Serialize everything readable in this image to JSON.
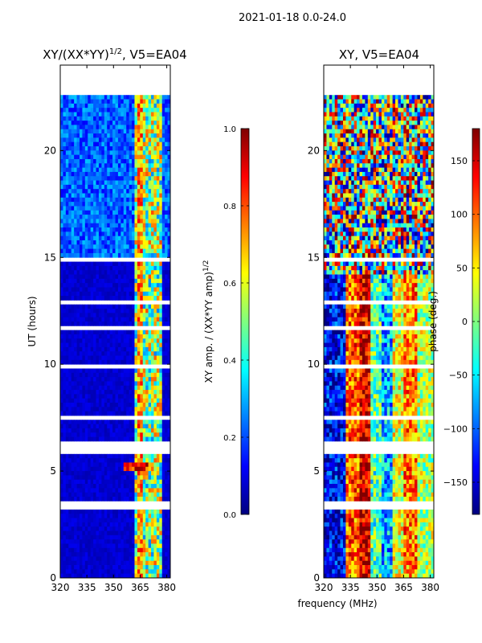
{
  "suptitle": "2021-01-18 0.0-24.0",
  "xlabel": "frequency (MHz)",
  "colors": {
    "jet": [
      "#00007f",
      "#0000ff",
      "#007fff",
      "#00ffff",
      "#7fff7f",
      "#ffff00",
      "#ff7f00",
      "#ff0000",
      "#7f0000"
    ],
    "flag": "#ffffff"
  },
  "chart_data": [
    {
      "type": "heatmap",
      "title_main": "XY/(XX*YY)",
      "title_sup": "1/2",
      "title_suffix": ", V5=EA04",
      "xlabel": "",
      "ylabel": "UT (hours)",
      "xlim": [
        320,
        382
      ],
      "ylim": [
        0,
        24
      ],
      "xticks": [
        "320",
        "335",
        "350",
        "365",
        "380"
      ],
      "xtick_values": [
        320,
        335,
        350,
        365,
        380
      ],
      "yticks": [
        "0",
        "5",
        "10",
        "15",
        "20"
      ],
      "ytick_values": [
        0,
        5,
        10,
        15,
        20
      ],
      "colorbar": {
        "label_main": "XY amp. / (XX*YY amp)",
        "label_sup": "1/2",
        "range": [
          0.0,
          1.0
        ],
        "ticks": [
          "0.0",
          "0.2",
          "0.4",
          "0.6",
          "0.8",
          "1.0"
        ],
        "tick_values": [
          0.0,
          0.2,
          0.4,
          0.6,
          0.8,
          1.0
        ]
      }
    },
    {
      "type": "heatmap",
      "title_main": "XY, V5=EA04",
      "xlabel": "frequency (MHz)",
      "ylabel": "",
      "xlim": [
        320,
        382
      ],
      "ylim": [
        0,
        24
      ],
      "xticks": [
        "320",
        "335",
        "350",
        "365",
        "380"
      ],
      "xtick_values": [
        320,
        335,
        350,
        365,
        380
      ],
      "yticks": [
        "0",
        "5",
        "10",
        "15",
        "20"
      ],
      "ytick_values": [
        0,
        5,
        10,
        15,
        20
      ],
      "colorbar": {
        "label_main": "phase (deg.)",
        "range": [
          -180,
          180
        ],
        "ticks": [
          "150",
          "100",
          "50",
          "0",
          "−50",
          "−100",
          "−150"
        ],
        "tick_values": [
          150,
          100,
          50,
          0,
          -50,
          -100,
          -150
        ]
      }
    }
  ]
}
